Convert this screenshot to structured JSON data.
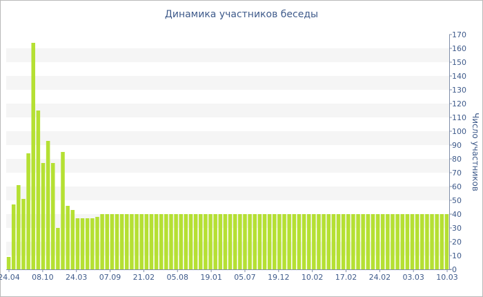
{
  "chart_data": {
    "type": "bar",
    "title": "Динамика участников беседы",
    "ylabel": "Число участников",
    "xlabel": "",
    "ylim": [
      0,
      170
    ],
    "y_ticks": [
      0,
      10,
      20,
      30,
      40,
      50,
      60,
      70,
      80,
      90,
      100,
      110,
      120,
      130,
      140,
      150,
      160,
      170
    ],
    "x_tick_labels": [
      "24.04",
      "08.10",
      "24.03",
      "07.09",
      "21.02",
      "05.08",
      "19.01",
      "05.07",
      "19.12",
      "10.02",
      "17.02",
      "24.02",
      "03.03",
      "10.03"
    ],
    "bar_color": "#b5e033",
    "grid": "alternating horizontal bands",
    "legend": "none",
    "values": [
      9,
      47,
      61,
      51,
      84,
      164,
      115,
      77,
      93,
      77,
      30,
      85,
      46,
      43,
      37,
      37,
      37,
      37,
      38,
      40,
      40,
      40,
      40,
      40,
      40,
      40,
      40,
      40,
      40,
      40,
      40,
      40,
      40,
      40,
      40,
      40,
      40,
      40,
      40,
      40,
      40,
      40,
      40,
      40,
      40,
      40,
      40,
      40,
      40,
      40,
      40,
      40,
      40,
      40,
      40,
      40,
      40,
      40,
      40,
      40,
      40,
      40,
      40,
      40,
      40,
      40,
      40,
      40,
      40,
      40,
      40,
      40,
      40,
      40,
      40,
      40,
      40,
      40,
      40,
      40,
      40,
      40,
      40,
      40,
      40,
      40,
      40,
      40,
      40,
      40
    ]
  }
}
